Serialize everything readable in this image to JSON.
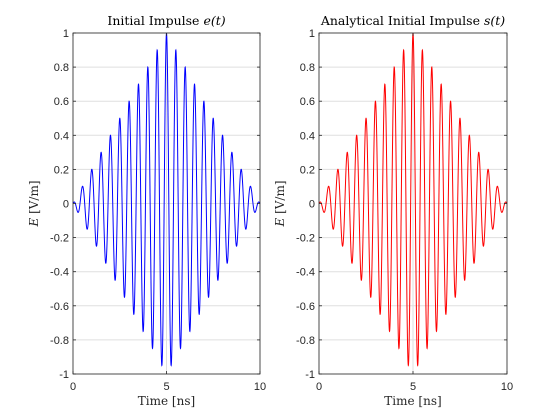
{
  "chart_data": [
    {
      "type": "line",
      "title_text": "Initial Impulse ",
      "title_math": "e(t)",
      "xlabel": "Time [ns]",
      "ylabel_math": "E",
      "ylabel_unit": " [V/m]",
      "xlim": [
        0,
        10
      ],
      "ylim": [
        -1,
        1
      ],
      "xticks": [
        "0",
        "5",
        "10"
      ],
      "yticks": [
        "1",
        "0.8",
        "0.6",
        "0.4",
        "0.2",
        "0",
        "-0.2",
        "-0.4",
        "-0.6",
        "-0.8",
        "-1"
      ],
      "grid": true,
      "series_color": "#0000ff",
      "series": {
        "envelope": "triangular",
        "peak_time_ns": 5,
        "peak_amplitude": 1,
        "carrier_frequency_ghz": 2,
        "start_ns": 0,
        "end_ns": 10
      }
    },
    {
      "type": "line",
      "title_text": "Analytical Initial Impulse ",
      "title_math": "s(t)",
      "xlabel": "Time [ns]",
      "ylabel_math": "E",
      "ylabel_unit": " [V/m]",
      "xlim": [
        0,
        10
      ],
      "ylim": [
        -1,
        1
      ],
      "xticks": [
        "0",
        "5",
        "10"
      ],
      "yticks": [
        "1",
        "0.8",
        "0.6",
        "0.4",
        "0.2",
        "0",
        "-0.2",
        "-0.4",
        "-0.6",
        "-0.8",
        "-1"
      ],
      "grid": true,
      "series_color": "#ff0000",
      "series": {
        "envelope": "triangular",
        "peak_time_ns": 5,
        "peak_amplitude": 1,
        "carrier_frequency_ghz": 2,
        "start_ns": 0,
        "end_ns": 10
      }
    }
  ]
}
